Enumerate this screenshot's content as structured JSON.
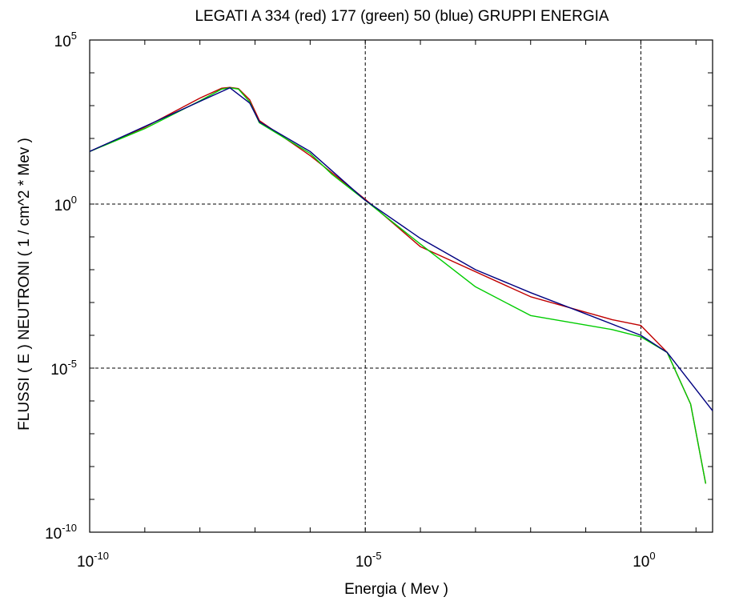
{
  "chart_data": {
    "type": "line",
    "title": "LEGATI A  334 (red)  177 (green)  50 (blue)  GRUPPI ENERGIA",
    "xlabel": "Energia ( Mev )",
    "ylabel": "FLUSSI ( E )    NEUTRONI    ( 1 / cm^2 * Mev )",
    "x_scale": "log",
    "y_scale": "log",
    "xlim": [
      1e-10,
      20
    ],
    "ylim": [
      1e-10,
      100000
    ],
    "x_ticks": [
      {
        "value": 1e-10,
        "base": "10",
        "exp": "-10"
      },
      {
        "value": 1e-05,
        "base": "10",
        "exp": "-5"
      },
      {
        "value": 1,
        "base": "10",
        "exp": "0"
      }
    ],
    "y_ticks": [
      {
        "value": 1e-10,
        "base": "10",
        "exp": "-10"
      },
      {
        "value": 1e-05,
        "base": "10",
        "exp": "-5"
      },
      {
        "value": 1,
        "base": "10",
        "exp": "0"
      },
      {
        "value": 100000,
        "base": "10",
        "exp": "5"
      }
    ],
    "grid": "dashed at 10^-5 and 10^0 on both axes",
    "series": [
      {
        "name": "334",
        "color": "#c00000",
        "points": [
          [
            1e-10,
            40
          ],
          [
            1e-09,
            220
          ],
          [
            1e-08,
            1700
          ],
          [
            2.5e-08,
            3400
          ],
          [
            3.5e-08,
            3600
          ],
          [
            5e-08,
            3300
          ],
          [
            8e-08,
            1500
          ],
          [
            1.2e-07,
            350
          ],
          [
            1e-06,
            30
          ],
          [
            1e-05,
            1.4
          ],
          [
            0.0001,
            0.05
          ],
          [
            0.01,
            0.0015
          ],
          [
            0.3,
            0.0003
          ],
          [
            1,
            0.0002
          ],
          [
            3,
            3e-05
          ],
          [
            8,
            8e-07
          ],
          [
            15,
            3e-09
          ]
        ]
      },
      {
        "name": "177",
        "color": "#00cc00",
        "points": [
          [
            1e-10,
            40
          ],
          [
            1e-09,
            200
          ],
          [
            1e-08,
            1400
          ],
          [
            2.5e-08,
            3200
          ],
          [
            3.5e-08,
            3500
          ],
          [
            5e-08,
            3200
          ],
          [
            8e-08,
            1300
          ],
          [
            1.2e-07,
            300
          ],
          [
            1e-06,
            35
          ],
          [
            2.5e-06,
            8
          ],
          [
            1e-05,
            1.3
          ],
          [
            0.0001,
            0.06
          ],
          [
            0.001,
            0.003
          ],
          [
            0.01,
            0.0004
          ],
          [
            0.3,
            0.00015
          ],
          [
            1,
            9e-05
          ],
          [
            3,
            3e-05
          ],
          [
            8,
            8e-07
          ],
          [
            15,
            3e-09
          ]
        ]
      },
      {
        "name": "50",
        "color": "#000080",
        "points": [
          [
            1e-10,
            40
          ],
          [
            3.5e-08,
            3500
          ],
          [
            8e-08,
            1200
          ],
          [
            1.2e-07,
            320
          ],
          [
            1e-06,
            40
          ],
          [
            1e-05,
            1.3
          ],
          [
            0.0001,
            0.09
          ],
          [
            0.001,
            0.01
          ],
          [
            0.01,
            0.002
          ],
          [
            0.1,
            0.00045
          ],
          [
            1,
            0.0001
          ],
          [
            3,
            3e-05
          ],
          [
            20,
            5e-07
          ]
        ]
      }
    ]
  }
}
